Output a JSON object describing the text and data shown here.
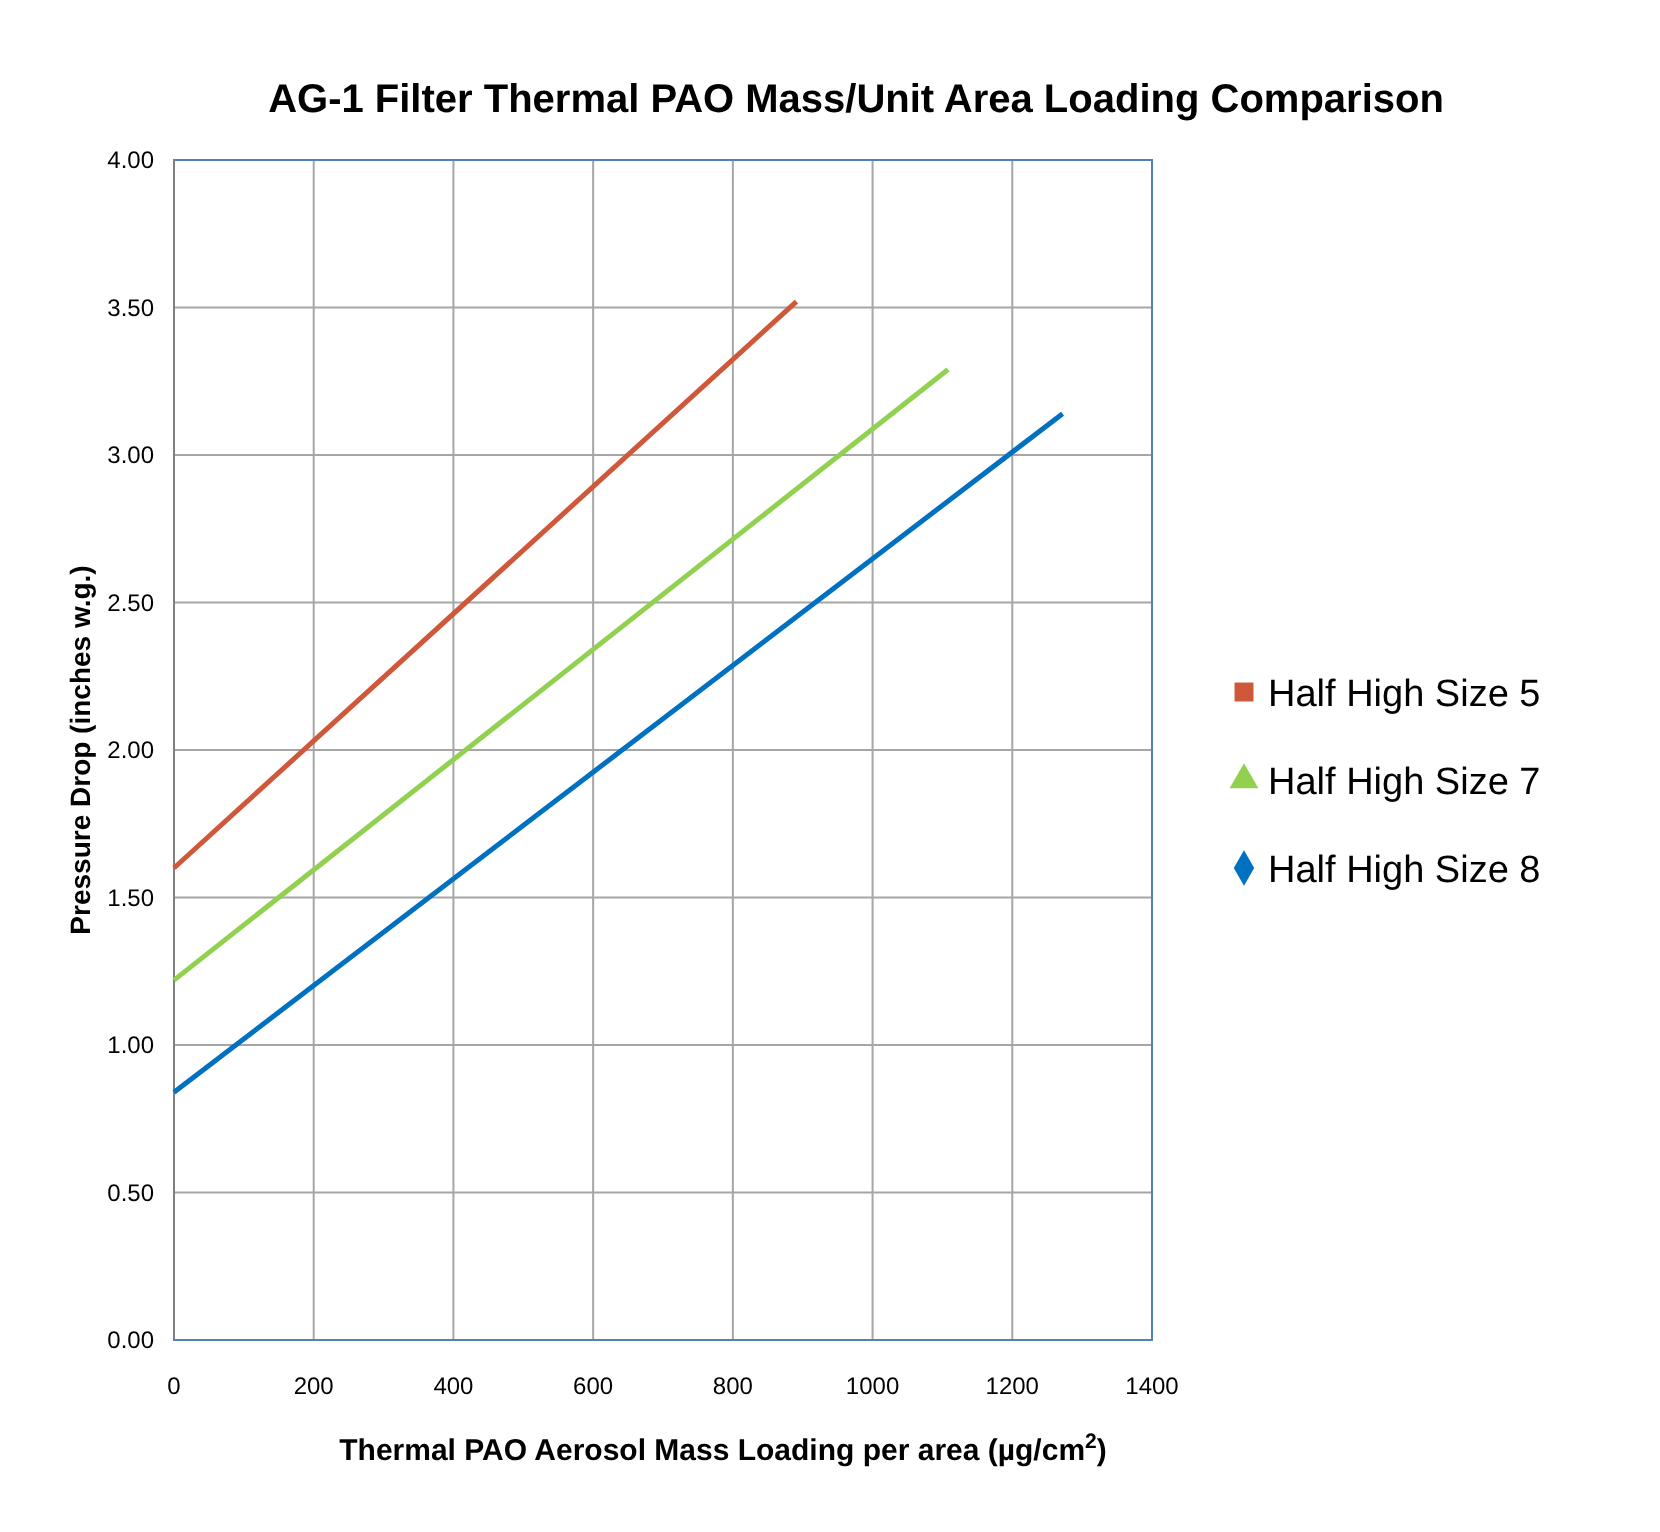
{
  "chart_data": {
    "type": "line",
    "title": "AG-1 Filter Thermal PAO Mass/Unit Area Loading Comparison",
    "xlabel": "Thermal PAO Aerosol Mass Loading per area (µg/cm$^{2}$)",
    "ylabel": "Pressure Drop (inches w.g.)",
    "series": [
      {
        "name": "Half High Size 5",
        "color": "#d0583a",
        "x": [
          0,
          891
        ],
        "values": [
          1.6,
          3.52
        ]
      },
      {
        "name": "Half High Size 7",
        "color": "#92d050",
        "x": [
          0,
          1108
        ],
        "values": [
          1.22,
          3.29
        ]
      },
      {
        "name": "Half High Size 8",
        "color": "#0070c0",
        "x": [
          0,
          1272
        ],
        "values": [
          0.84,
          3.14
        ]
      }
    ],
    "xlim": [
      0,
      1400
    ],
    "xticks": [
      0,
      200,
      400,
      600,
      800,
      1000,
      1200,
      1400
    ],
    "ylim": [
      0,
      4
    ],
    "yticks": [
      {
        "value": 0,
        "label": "0.00"
      },
      {
        "value": 0.5,
        "label": "0.50"
      },
      {
        "value": 1,
        "label": "1.00"
      },
      {
        "value": 1.5,
        "label": "1.50"
      },
      {
        "value": 2,
        "label": "2.00"
      },
      {
        "value": 2.5,
        "label": "2.50"
      },
      {
        "value": 3,
        "label": "3.00"
      },
      {
        "value": 3.5,
        "label": "3.50"
      },
      {
        "value": 4,
        "label": "4.00"
      }
    ],
    "grid": true,
    "legend": "right",
    "marker": "none",
    "line_style": "solid"
  }
}
